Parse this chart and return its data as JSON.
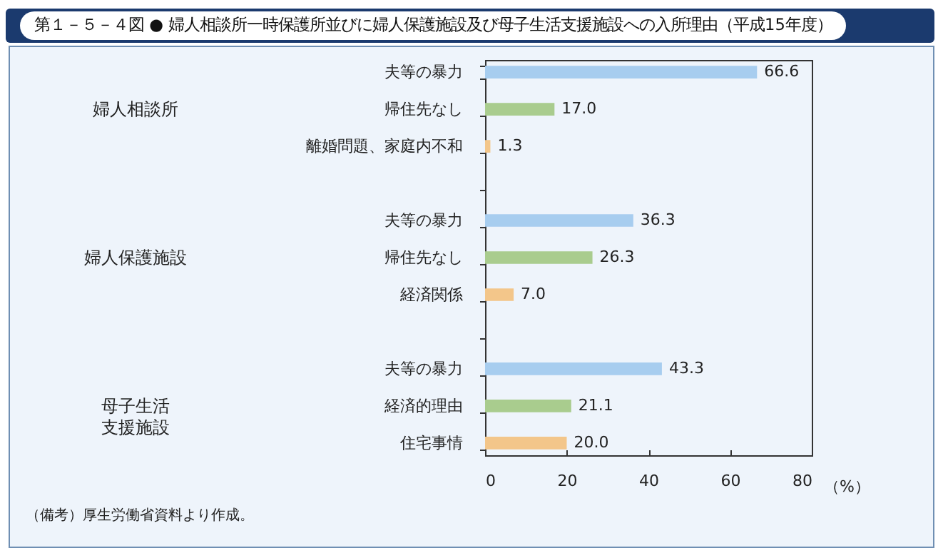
{
  "chart_data": {
    "type": "bar",
    "orientation": "horizontal",
    "title": "第１－５－４図 ● 婦人相談所一時保護所並びに婦人保護施設及び母子生活支援施設への入所理由（平成15年度）",
    "categories": [
      "夫等の暴力",
      "帰住先なし",
      "離婚問題、家庭内不和",
      null,
      "夫等の暴力",
      "帰住先なし",
      "経済関係",
      null,
      "夫等の暴力",
      "経済的理由",
      "住宅事情"
    ],
    "values": [
      66.6,
      17.0,
      1.3,
      null,
      36.3,
      26.3,
      7.0,
      null,
      43.3,
      21.1,
      20.0
    ],
    "colors": [
      "#a7cdef",
      "#a9cc8e",
      "#f3c68a",
      null,
      "#a7cdef",
      "#a9cc8e",
      "#f3c68a",
      null,
      "#a7cdef",
      "#a9cc8e",
      "#f3c68a"
    ],
    "value_labels": [
      "66.6",
      "17.0",
      "1.3",
      null,
      "36.3",
      "26.3",
      "7.0",
      null,
      "43.3",
      "21.1",
      "20.0"
    ],
    "xlim": [
      0,
      80
    ],
    "xticks": [
      0,
      20,
      40,
      60,
      80
    ],
    "xlabel": "（%）",
    "annotations": [
      "婦人相談所",
      "婦人保護施設",
      "母子生活支援施設",
      "（備考）厚生労働省資料より作成。"
    ]
  }
}
